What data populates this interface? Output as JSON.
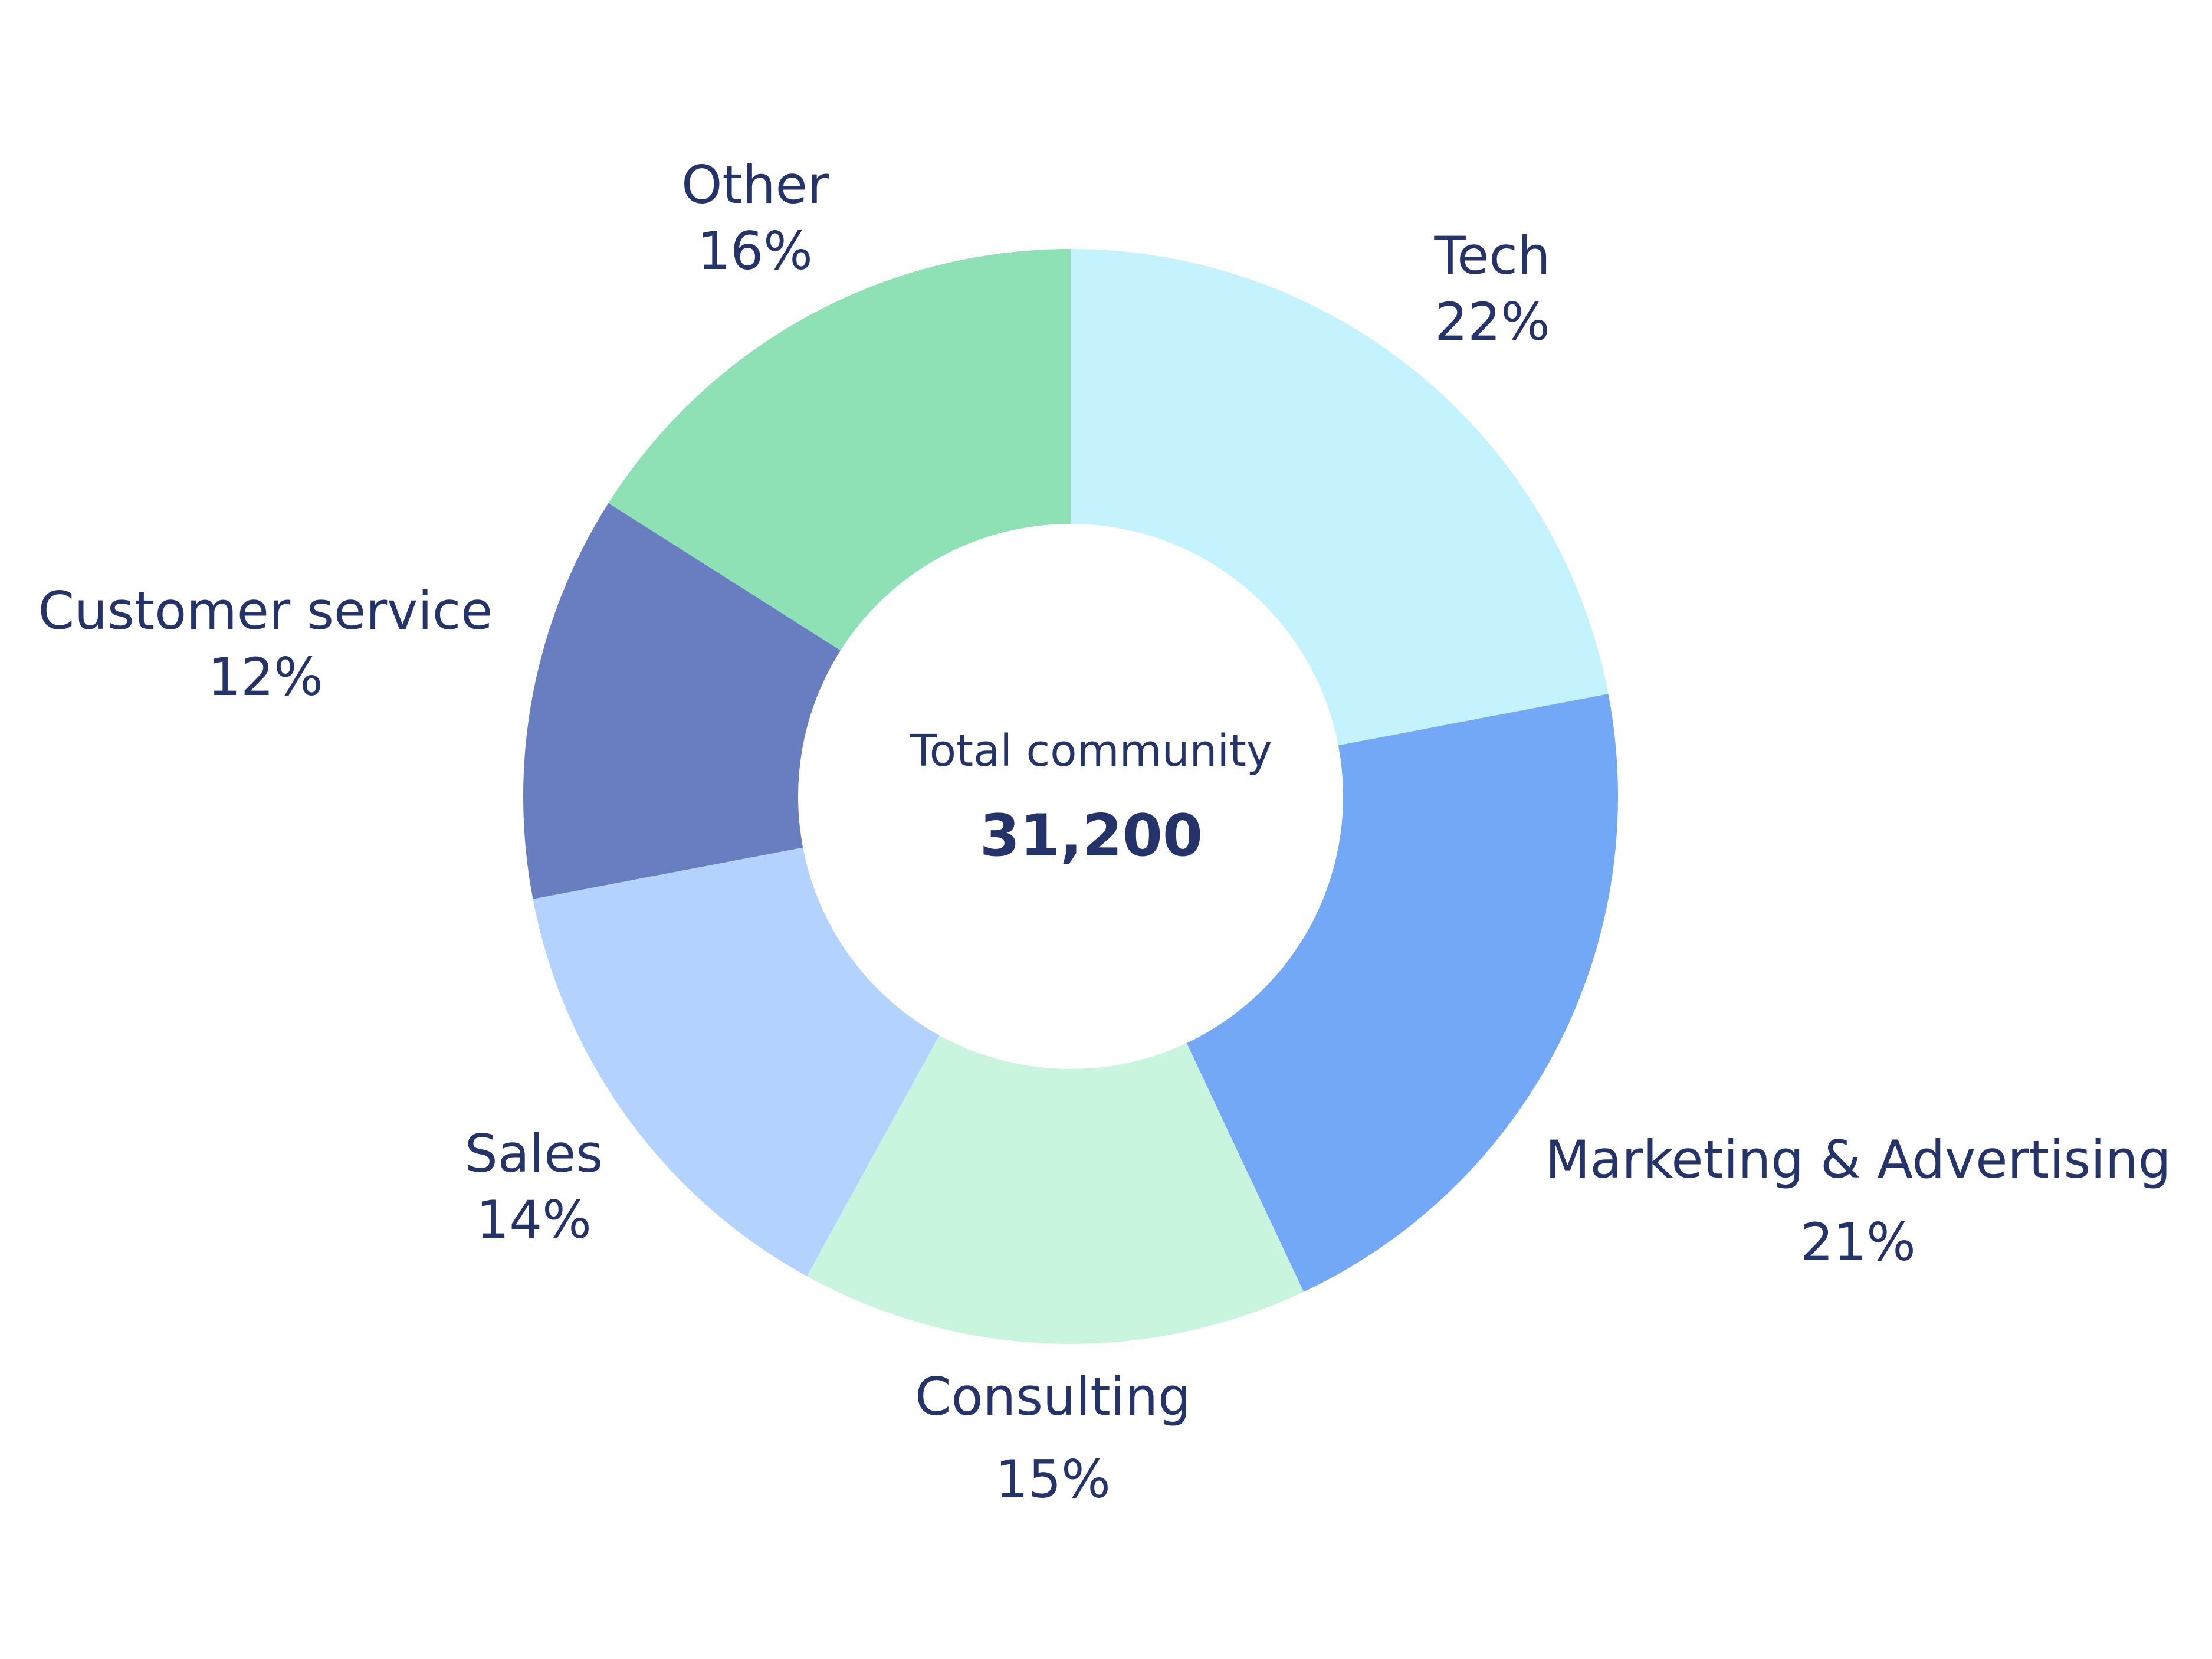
{
  "chart_data": {
    "type": "pie",
    "donut": true,
    "center": {
      "caption": "Total community",
      "value": "31,200"
    },
    "slices": [
      {
        "name": "Tech",
        "value": 22,
        "label": "22%",
        "color": "#c4f3fe"
      },
      {
        "name": "Marketing & Advertising",
        "value": 21,
        "label": "21%",
        "color": "#72a8f5"
      },
      {
        "name": "Consulting",
        "value": 15,
        "label": "15%",
        "color": "#c9f5de"
      },
      {
        "name": "Sales",
        "value": 14,
        "label": "14%",
        "color": "#b3d3fe"
      },
      {
        "name": "Customer service",
        "value": 12,
        "label": "12%",
        "color": "#687ec1"
      },
      {
        "name": "Other",
        "value": 16,
        "label": "16%",
        "color": "#8ee1b4"
      }
    ]
  },
  "colors": {
    "label_text": "#25336b",
    "background": "#ffffff"
  }
}
